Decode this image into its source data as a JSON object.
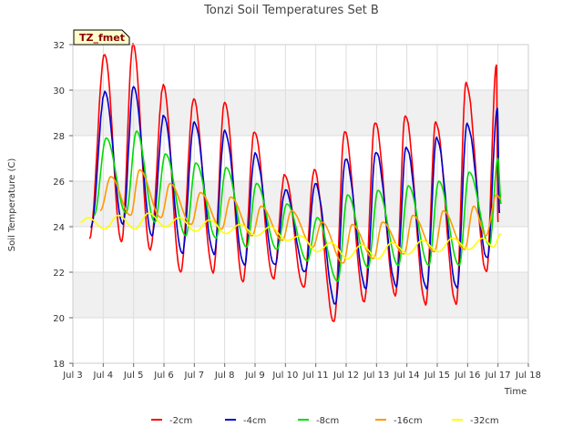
{
  "chart_data": {
    "type": "line",
    "title": "Tonzi Soil Temperatures Set B",
    "xlabel": "Time",
    "ylabel": "Soil Temperature (C)",
    "site_label": "TZ_fmet",
    "xlim": [
      3,
      18
    ],
    "ylim": [
      18,
      32
    ],
    "x_ticks": [
      3,
      4,
      5,
      6,
      7,
      8,
      9,
      10,
      11,
      12,
      13,
      14,
      15,
      16,
      17,
      18
    ],
    "x_tick_labels": [
      "Jul 3",
      "Jul 4",
      "Jul 5",
      "Jul 6",
      "Jul 7",
      "Jul 8",
      "Jul 9",
      "Jul 10",
      "Jul 11",
      "Jul 12",
      "Jul 13",
      "Jul 14",
      "Jul 15",
      "Jul 16",
      "Jul 17",
      "Jul 18"
    ],
    "y_ticks": [
      18,
      20,
      22,
      24,
      26,
      28,
      30,
      32
    ],
    "y_tick_labels": [
      "18",
      "20",
      "22",
      "24",
      "26",
      "28",
      "30",
      "32"
    ],
    "grid": true,
    "legend_position": "bottom",
    "series": [
      {
        "name": "-2cm",
        "color": "#ff0000",
        "peak_times": [
          4.05,
          4.98,
          5.98,
          6.98,
          8.0,
          8.98,
          9.98,
          10.95,
          11.95,
          12.95,
          13.95,
          14.95,
          15.95,
          16.95
        ],
        "peak_values": [
          31.6,
          32.0,
          30.2,
          29.6,
          29.5,
          28.2,
          26.3,
          26.5,
          28.2,
          28.6,
          28.9,
          28.6,
          30.3,
          31.1
        ],
        "trough_times": [
          3.55,
          4.6,
          5.55,
          6.55,
          7.62,
          8.6,
          9.6,
          10.6,
          11.6,
          12.6,
          13.62,
          14.62,
          15.62,
          16.62
        ],
        "trough_values": [
          23.5,
          23.3,
          23.0,
          22.0,
          22.0,
          21.6,
          21.7,
          21.3,
          19.8,
          20.7,
          21.0,
          20.6,
          20.6,
          22.0
        ],
        "end": [
          17.0,
          24.2
        ]
      },
      {
        "name": "-4cm",
        "color": "#0000cc",
        "peak_times": [
          4.05,
          5.0,
          6.0,
          7.0,
          8.0,
          9.0,
          10.0,
          10.98,
          11.98,
          12.98,
          13.98,
          14.98,
          15.98,
          16.98
        ],
        "peak_values": [
          29.9,
          30.2,
          28.9,
          28.6,
          28.2,
          27.2,
          25.6,
          25.9,
          27.0,
          27.3,
          27.5,
          27.9,
          28.5,
          29.2
        ],
        "trough_times": [
          3.6,
          4.65,
          5.6,
          6.6,
          7.65,
          8.65,
          9.65,
          10.65,
          11.65,
          12.65,
          13.65,
          14.65,
          15.65,
          16.65
        ],
        "trough_values": [
          24.0,
          24.1,
          23.6,
          22.8,
          22.8,
          22.3,
          22.3,
          22.0,
          20.6,
          21.3,
          21.4,
          21.3,
          21.3,
          22.6
        ],
        "end": [
          17.05,
          24.6
        ]
      },
      {
        "name": "-8cm",
        "color": "#00dd00",
        "peak_times": [
          4.1,
          5.1,
          6.05,
          7.05,
          8.05,
          9.05,
          10.05,
          11.05,
          12.05,
          13.05,
          14.05,
          15.05,
          16.05,
          17.0
        ],
        "peak_values": [
          27.9,
          28.2,
          27.2,
          26.8,
          26.6,
          25.9,
          25.0,
          24.4,
          25.4,
          25.6,
          25.8,
          26.0,
          26.4,
          27.0
        ],
        "trough_times": [
          3.7,
          4.75,
          5.7,
          6.72,
          7.72,
          8.72,
          9.72,
          10.72,
          11.72,
          12.72,
          13.72,
          14.72,
          15.72,
          16.72
        ],
        "trough_values": [
          24.5,
          24.6,
          24.2,
          23.6,
          23.5,
          23.1,
          23.0,
          22.5,
          21.6,
          22.2,
          22.3,
          22.3,
          22.3,
          23.2
        ],
        "end": [
          17.1,
          25.0
        ]
      },
      {
        "name": "-16cm",
        "color": "#ff9900",
        "peak_times": [
          4.25,
          5.2,
          6.2,
          7.2,
          8.2,
          9.2,
          10.2,
          11.2,
          12.2,
          13.2,
          14.2,
          15.2,
          16.2,
          16.95
        ],
        "peak_values": [
          26.2,
          26.5,
          25.9,
          25.5,
          25.3,
          24.9,
          24.7,
          24.2,
          24.1,
          24.2,
          24.5,
          24.7,
          24.9,
          25.4
        ],
        "trough_times": [
          3.9,
          4.9,
          5.9,
          6.9,
          7.9,
          8.9,
          9.9,
          10.9,
          11.9,
          12.9,
          13.9,
          14.9,
          15.9,
          16.6
        ],
        "trough_values": [
          24.7,
          24.5,
          24.4,
          24.1,
          23.9,
          23.6,
          23.4,
          23.1,
          22.4,
          22.6,
          22.8,
          22.9,
          23.0,
          23.6
        ],
        "end": [
          17.1,
          25.2
        ]
      },
      {
        "name": "-32cm",
        "color": "#ffff00",
        "peak_times": [
          3.5,
          4.5,
          5.5,
          6.5,
          7.5,
          8.5,
          9.5,
          10.5,
          11.5,
          12.5,
          13.5,
          14.5,
          15.5,
          16.5
        ],
        "peak_values": [
          24.4,
          24.5,
          24.6,
          24.4,
          24.3,
          24.1,
          24.0,
          23.6,
          23.3,
          23.2,
          23.3,
          23.4,
          23.5,
          23.5
        ],
        "trough_times": [
          3.25,
          4.05,
          5.05,
          6.05,
          7.05,
          8.05,
          9.05,
          10.05,
          11.05,
          12.05,
          13.05,
          14.05,
          15.05,
          16.05,
          16.85
        ],
        "trough_values": [
          24.2,
          23.9,
          23.9,
          24.0,
          23.8,
          23.7,
          23.6,
          23.4,
          22.9,
          22.6,
          22.6,
          22.8,
          22.9,
          23.0,
          23.1
        ],
        "end": [
          17.1,
          23.7
        ]
      }
    ]
  }
}
